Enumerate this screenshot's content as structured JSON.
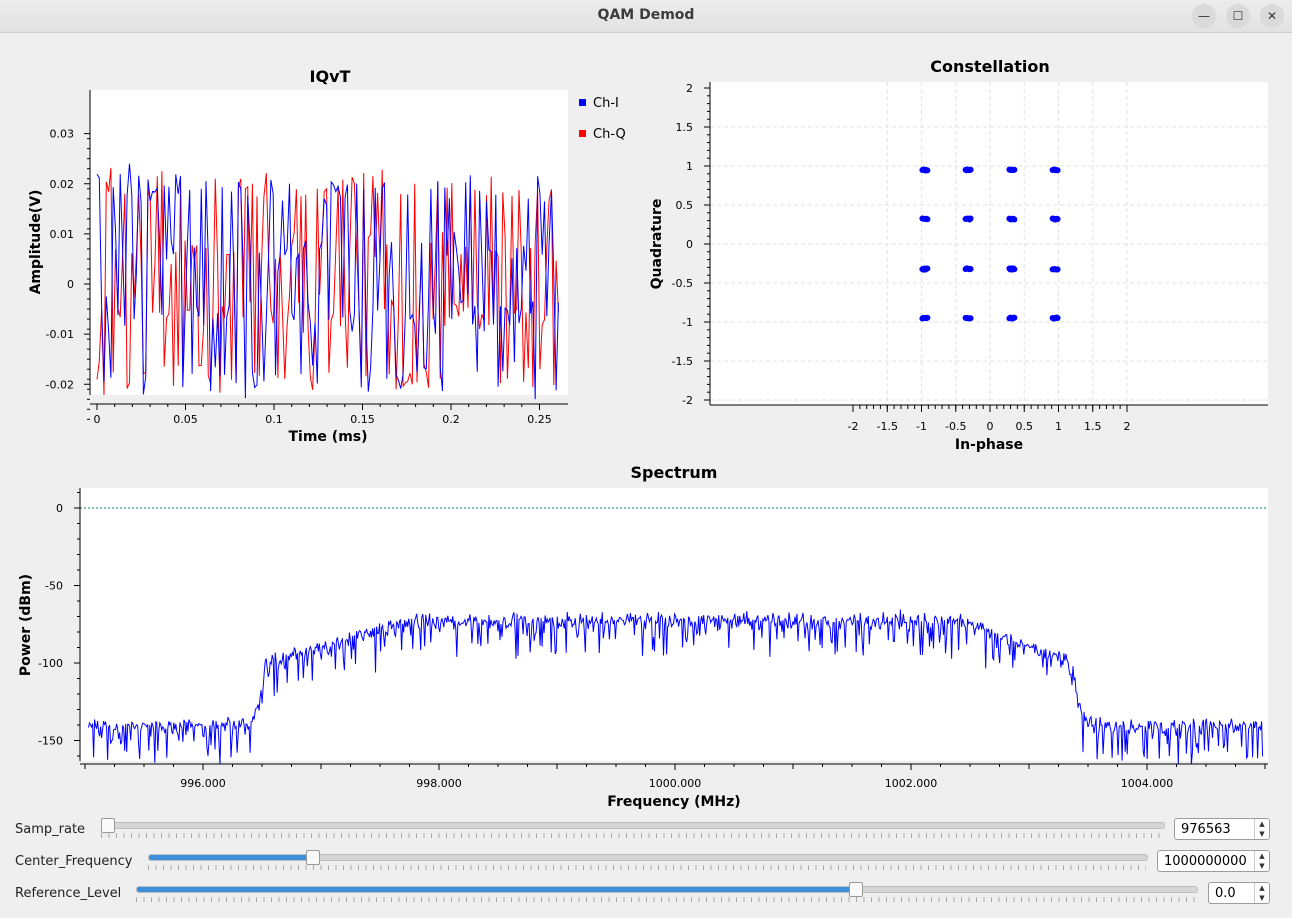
{
  "window": {
    "title": "QAM Demod",
    "minimize_icon": "minimize-icon",
    "maximize_icon": "maximize-icon",
    "close_icon": "close-icon"
  },
  "iqvt": {
    "title": "IQvT",
    "xlabel": "Time (ms)",
    "ylabel": "Amplitude(V)",
    "x_ticks": [
      "0",
      "0.05",
      "0.1",
      "0.15",
      "0.2",
      "0.25"
    ],
    "y_ticks": [
      "0.03",
      "0.02",
      "0.01",
      "0",
      "-0.01",
      "-0.02"
    ],
    "legend": [
      {
        "name": "Ch-I",
        "color": "#0000ff"
      },
      {
        "name": "Ch-Q",
        "color": "#ff0000"
      }
    ]
  },
  "constellation": {
    "title": "Constellation",
    "xlabel": "In-phase",
    "ylabel": "Quadrature",
    "x_ticks": [
      "-2",
      "-1.5",
      "-1",
      "-0.5",
      "0",
      "0.5",
      "1",
      "1.5",
      "2"
    ],
    "y_ticks": [
      "2",
      "1.5",
      "1",
      "0.5",
      "0",
      "-0.5",
      "-1",
      "-1.5",
      "-2"
    ]
  },
  "spectrum": {
    "title": "Spectrum",
    "xlabel": "Frequency (MHz)",
    "ylabel": "Power (dBm)",
    "x_ticks": [
      "996.000",
      "998.000",
      "1000.000",
      "1002.000",
      "1004.000"
    ],
    "y_ticks": [
      "0",
      "-50",
      "-100",
      "-150"
    ]
  },
  "controls": {
    "samp_rate": {
      "label": "Samp_rate",
      "value": "976563",
      "fraction": 0.0
    },
    "center_frequency": {
      "label": "Center_Frequency",
      "value": "1000000000",
      "fraction": 0.16
    },
    "reference_level": {
      "label": "Reference_Level",
      "value": "0.0",
      "fraction": 0.68
    }
  },
  "chart_data": [
    {
      "type": "line",
      "title": "IQvT",
      "xlabel": "Time (ms)",
      "ylabel": "Amplitude(V)",
      "xlim": [
        0,
        0.262
      ],
      "ylim": [
        -0.0275,
        0.0305
      ],
      "series": [
        {
          "name": "Ch-I",
          "color": "#0000ff",
          "description": "noisy QAM I samples, ~200 points between -0.022 and 0.022"
        },
        {
          "name": "Ch-Q",
          "color": "#ff0000",
          "description": "noisy QAM Q samples, ~200 points between -0.022 and 0.026"
        }
      ],
      "legend_position": "right"
    },
    {
      "type": "scatter",
      "title": "Constellation",
      "xlabel": "In-phase",
      "ylabel": "Quadrature",
      "xlim": [
        -2,
        2
      ],
      "ylim": [
        -2,
        2
      ],
      "grid": true,
      "points": [
        [
          -0.95,
          0.95
        ],
        [
          -0.32,
          0.95
        ],
        [
          0.32,
          0.95
        ],
        [
          0.95,
          0.95
        ],
        [
          -0.95,
          0.32
        ],
        [
          -0.32,
          0.32
        ],
        [
          0.32,
          0.32
        ],
        [
          0.95,
          0.32
        ],
        [
          -0.95,
          -0.32
        ],
        [
          -0.32,
          -0.32
        ],
        [
          0.32,
          -0.32
        ],
        [
          0.95,
          -0.32
        ],
        [
          -0.95,
          -0.95
        ],
        [
          -0.32,
          -0.95
        ],
        [
          0.32,
          -0.95
        ],
        [
          0.95,
          -0.95
        ]
      ]
    },
    {
      "type": "line",
      "title": "Spectrum",
      "xlabel": "Frequency (MHz)",
      "ylabel": "Power (dBm)",
      "xlim": [
        995.0,
        1005.0
      ],
      "ylim": [
        -160,
        10
      ],
      "reference_line_dbm": 0,
      "passband_mhz": [
        996.5,
        1003.4
      ],
      "passband_level_dbm": -75,
      "noise_floor_dbm": -140,
      "series": [
        {
          "name": "",
          "color": "#0000ff"
        }
      ]
    }
  ]
}
